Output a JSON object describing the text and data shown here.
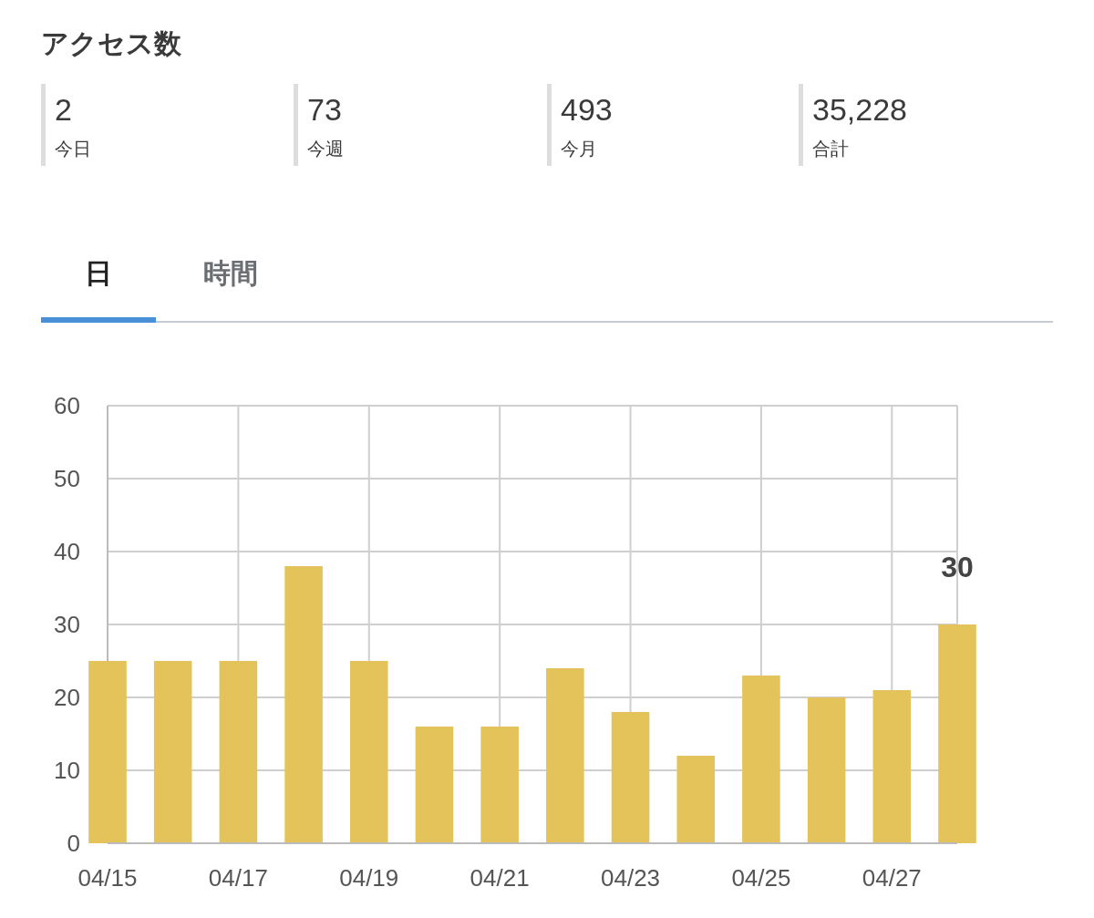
{
  "chart_data": [
    {
      "type": "other",
      "title": "アクセス数",
      "annotations": [
        "2",
        "今日",
        "73",
        "今週",
        "493",
        "今月",
        "35,228",
        "合計",
        "日",
        "時間"
      ]
    },
    {
      "type": "bar",
      "x": [
        "--04-15",
        "--04-16",
        "--04-17",
        "--04-18",
        "--04-19",
        "--04-20",
        "--04-21",
        "--04-22",
        "--04-23",
        "--04-24",
        "--04-25",
        "--04-26",
        "--04-27",
        "--04-28"
      ],
      "values": [
        25,
        25,
        25,
        38,
        25,
        16,
        16,
        24,
        18,
        12,
        23,
        20,
        21,
        30
      ],
      "value_labels": [
        null,
        null,
        null,
        null,
        null,
        null,
        null,
        null,
        null,
        null,
        null,
        null,
        null,
        "30"
      ],
      "color": "#e4c35a",
      "xlim": [
        "--04-15",
        "--04-28"
      ],
      "xticks": [
        {
          "value": "--04-15",
          "label": "04/15"
        },
        {
          "value": "--04-17",
          "label": "04/17"
        },
        {
          "value": "--04-19",
          "label": "04/19"
        },
        {
          "value": "--04-21",
          "label": "04/21"
        },
        {
          "value": "--04-23",
          "label": "04/23"
        },
        {
          "value": "--04-25",
          "label": "04/25"
        },
        {
          "value": "--04-27",
          "label": "04/27"
        }
      ],
      "ylim": [
        0,
        60
      ],
      "yticks": [
        0,
        10,
        20,
        30,
        40,
        50,
        60
      ],
      "grid": true
    }
  ]
}
